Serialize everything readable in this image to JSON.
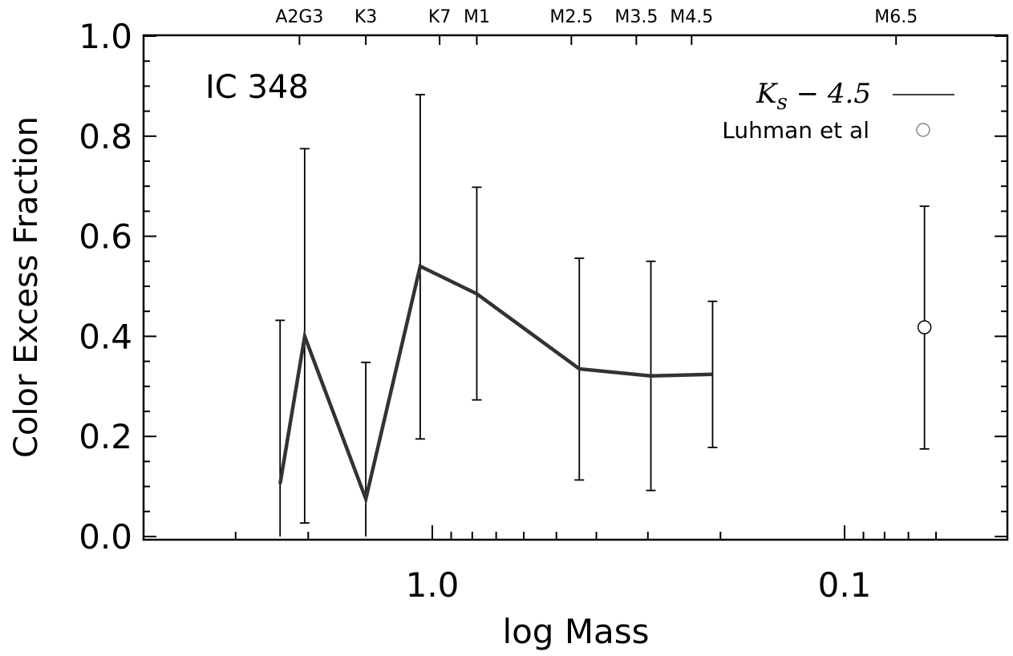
{
  "chart_data": {
    "type": "line",
    "title": "",
    "annotation": "IC 348",
    "xlabel": "log Mass",
    "ylabel": "Color Excess Fraction",
    "x_scale": "log-reversed",
    "xlim": [
      4.5,
      0.05
    ],
    "ylim": [
      0.0,
      1.0
    ],
    "x_tick_labels": [
      {
        "value": 1.0,
        "label": "1.0"
      },
      {
        "value": 0.1,
        "label": "0.1"
      }
    ],
    "y_tick_labels": [
      "0.0",
      "0.2",
      "0.4",
      "0.6",
      "0.8",
      "1.0"
    ],
    "top_axis_labels": [
      {
        "value": 2.1,
        "label": "A2G3"
      },
      {
        "value": 1.45,
        "label": "K3"
      },
      {
        "value": 0.96,
        "label": "K7"
      },
      {
        "value": 0.78,
        "label": "M1"
      },
      {
        "value": 0.46,
        "label": "M2.5"
      },
      {
        "value": 0.32,
        "label": "M3.5"
      },
      {
        "value": 0.235,
        "label": "M4.5"
      },
      {
        "value": 0.075,
        "label": "M6.5"
      }
    ],
    "series": [
      {
        "name": "Ks − 4.5",
        "style": "line",
        "color": "#333333",
        "points": [
          {
            "x": 2.34,
            "y": 0.105,
            "ylow": 0.0,
            "yhigh": 0.432
          },
          {
            "x": 2.04,
            "y": 0.4,
            "ylow": 0.027,
            "yhigh": 0.775
          },
          {
            "x": 1.45,
            "y": 0.075,
            "ylow": 0.0,
            "yhigh": 0.348
          },
          {
            "x": 1.07,
            "y": 0.54,
            "ylow": 0.195,
            "yhigh": 0.883
          },
          {
            "x": 0.78,
            "y": 0.485,
            "ylow": 0.273,
            "yhigh": 0.698
          },
          {
            "x": 0.44,
            "y": 0.335,
            "ylow": 0.113,
            "yhigh": 0.556
          },
          {
            "x": 0.295,
            "y": 0.321,
            "ylow": 0.092,
            "yhigh": 0.55
          },
          {
            "x": 0.209,
            "y": 0.324,
            "ylow": 0.178,
            "yhigh": 0.47
          }
        ]
      },
      {
        "name": "Luhman et al",
        "style": "marker",
        "marker": "open-circle",
        "points": [
          {
            "x": 0.064,
            "y": 0.418,
            "ylow": 0.175,
            "yhigh": 0.66
          }
        ]
      }
    ],
    "legend": {
      "position": "top-right",
      "entries": [
        {
          "label_main": "K",
          "label_sub": "s",
          "label_rest": " − 4.5",
          "symbol": "line"
        },
        {
          "label": "Luhman et al",
          "symbol": "open-circle"
        }
      ]
    },
    "grid": false
  }
}
